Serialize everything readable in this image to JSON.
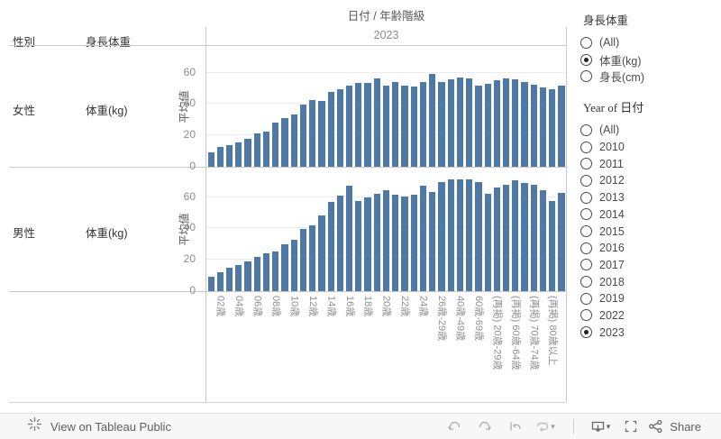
{
  "header": {
    "gender_col": "性別",
    "metric_col": "身長体重",
    "title": "日付 / 年齢階級",
    "year_band": "2023"
  },
  "rows": [
    {
      "gender": "女性",
      "metric": "体重(kg)"
    },
    {
      "gender": "男性",
      "metric": "体重(kg)"
    }
  ],
  "y_axis_title": "平均値",
  "chart_data": {
    "type": "bar",
    "title": "日付 / 年齢階級",
    "subtitle": "2023",
    "ylabel": "平均値",
    "bar_color": "#4e79a7",
    "y_ticks": [
      0,
      20,
      40,
      60
    ],
    "ylim": [
      0,
      76
    ],
    "grid": true,
    "x_tick_labels": [
      "",
      "02歳",
      "",
      "04歳",
      "",
      "06歳",
      "",
      "08歳",
      "",
      "10歳",
      "",
      "12歳",
      "",
      "14歳",
      "",
      "16歳",
      "",
      "18歳",
      "",
      "20歳",
      "",
      "22歳",
      "",
      "24歳",
      "",
      "26歳-29歳",
      "",
      "40歳-49歳",
      "",
      "60歳-69歳",
      "",
      "(再掲) 20歳-29歳",
      "",
      "(再掲) 60歳-64歳",
      "",
      "(再掲) 70歳-74歳",
      "",
      "(再掲) 80歳以上",
      ""
    ],
    "series": [
      {
        "name": "女性 体重(kg)",
        "values": [
          9,
          12.5,
          14,
          15.5,
          18,
          21,
          22.5,
          28,
          31,
          33.5,
          39.5,
          42.5,
          42,
          47.5,
          49.5,
          52,
          53.5,
          53.5,
          56.5,
          52,
          54,
          51.5,
          51,
          54,
          59,
          54,
          55.5,
          57,
          56.5,
          52,
          53,
          55,
          56.5,
          56,
          54,
          52.5,
          50.5,
          49.5,
          52
        ]
      },
      {
        "name": "男性 体重(kg)",
        "values": [
          9,
          12,
          15,
          16.5,
          19,
          22,
          24,
          25.5,
          30,
          33,
          39.5,
          42,
          48,
          57,
          61,
          67.5,
          57.5,
          59.5,
          62,
          64.5,
          61.5,
          60.5,
          61.5,
          67,
          63,
          69.5,
          71.5,
          71.5,
          71.5,
          69.5,
          62,
          66,
          68,
          70.5,
          69,
          68,
          64.5,
          57.5,
          62.5
        ]
      }
    ]
  },
  "filters": [
    {
      "title": "身長体重",
      "serif": false,
      "options": [
        {
          "label": "(All)",
          "selected": false
        },
        {
          "label": "体重(kg)",
          "selected": true
        },
        {
          "label": "身長(cm)",
          "selected": false
        }
      ]
    },
    {
      "title": "Year of 日付",
      "serif": true,
      "options": [
        {
          "label": "(All)",
          "selected": false
        },
        {
          "label": "2010",
          "selected": false
        },
        {
          "label": "2011",
          "selected": false
        },
        {
          "label": "2012",
          "selected": false
        },
        {
          "label": "2013",
          "selected": false
        },
        {
          "label": "2014",
          "selected": false
        },
        {
          "label": "2015",
          "selected": false
        },
        {
          "label": "2016",
          "selected": false
        },
        {
          "label": "2017",
          "selected": false
        },
        {
          "label": "2018",
          "selected": false
        },
        {
          "label": "2019",
          "selected": false
        },
        {
          "label": "2022",
          "selected": false
        },
        {
          "label": "2023",
          "selected": true
        }
      ]
    }
  ],
  "toolbar": {
    "view_on_label": "View on Tableau Public",
    "share_label": "Share",
    "icons": [
      "tableau-logo",
      "undo",
      "redo",
      "reset",
      "replay",
      "replay-caret",
      "download-device",
      "download-caret",
      "fullscreen",
      "share"
    ]
  }
}
